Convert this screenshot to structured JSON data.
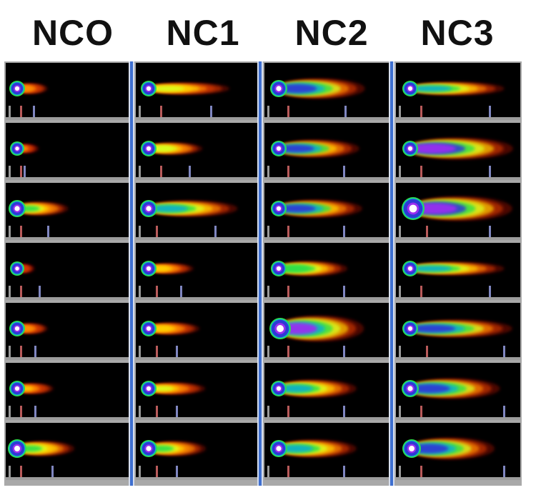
{
  "figure": {
    "column_labels": [
      "NCO",
      "NC1",
      "NC2",
      "NC3"
    ],
    "rows_per_column": 7,
    "colors": {
      "background": "#000000",
      "grid_line": "#a9a9a9",
      "column_divider": "#3e6fd0",
      "selection_frame": "#2fa33a",
      "head_marker": "#9a9a9a",
      "tail_start_marker": "#b85a5a",
      "tail_end_marker": "#7f86c0"
    },
    "comet_colormap": [
      "#2a0000",
      "#8a0d00",
      "#d63a00",
      "#ff8c00",
      "#ffd000",
      "#d8ff20",
      "#2ee04a",
      "#10b0c8",
      "#2d3bd4",
      "#9a2ef0",
      "#ffffff"
    ]
  }
}
